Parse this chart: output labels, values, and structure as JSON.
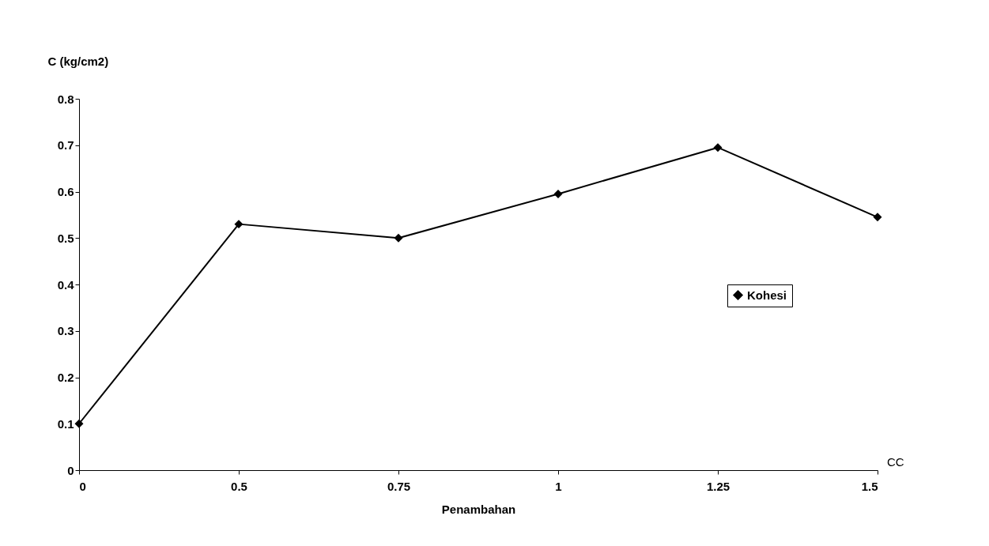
{
  "chart_data": {
    "type": "line",
    "xlabel": "Penambahan",
    "ylabel": "C (kg/cm2)",
    "categories": [
      "0",
      "0.5",
      "0.75",
      "1",
      "1.25",
      "1.5"
    ],
    "series": [
      {
        "name": "Kohesi",
        "color": "#000000",
        "values": [
          0.1,
          0.53,
          0.5,
          0.595,
          0.695,
          0.545
        ]
      }
    ],
    "ylim": [
      0,
      0.8
    ],
    "yticks": [
      0,
      0.1,
      0.2,
      0.3,
      0.4,
      0.5,
      0.6,
      0.7,
      0.8
    ],
    "annotations": [
      "CC"
    ],
    "grid": false,
    "legend": "right",
    "marker": "diamond",
    "line_style": "solid"
  }
}
